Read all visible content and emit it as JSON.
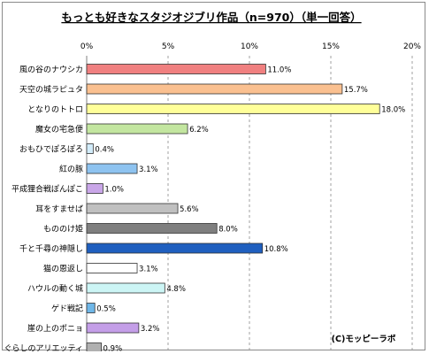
{
  "chart_data": {
    "type": "bar",
    "orientation": "horizontal",
    "title": "もっとも好きなスタジオジブリ作品（n=970）（単一回答）",
    "credit": "(C)モッピーラボ",
    "xlim": [
      0,
      20
    ],
    "x_ticks": [
      0,
      5,
      10,
      15,
      20
    ],
    "x_tick_labels": [
      "0%",
      "5%",
      "10%",
      "15%",
      "20%"
    ],
    "grid": "vertical dashed",
    "categories": [
      "風の谷のナウシカ",
      "天空の城ラピュタ",
      "となりのトトロ",
      "魔女の宅急便",
      "おもひでぽろぽろ",
      "紅の豚",
      "平成狸合戦ぽんぽこ",
      "耳をすませば",
      "もののけ姫",
      "千と千尋の神隠し",
      "猫の恩返し",
      "ハウルの動く城",
      "ゲド戦記",
      "崖の上のポニョ",
      "借りぐらしのアリエッティ"
    ],
    "values": [
      11.0,
      15.7,
      18.0,
      6.2,
      0.4,
      3.1,
      1.0,
      5.6,
      8.0,
      10.8,
      3.1,
      4.8,
      0.5,
      3.2,
      0.9
    ],
    "value_labels": [
      "11.0%",
      "15.7%",
      "18.0%",
      "6.2%",
      "0.4%",
      "3.1%",
      "1.0%",
      "5.6%",
      "8.0%",
      "10.8%",
      "3.1%",
      "4.8%",
      "0.5%",
      "3.2%",
      "0.9%"
    ],
    "colors": [
      "#f08080",
      "#fac090",
      "#ffff99",
      "#c3e6a0",
      "#d2ecfa",
      "#8ec3f0",
      "#c9a6e8",
      "#c0c0c0",
      "#7f7f7f",
      "#1f5fbf",
      "#ffffff",
      "#ccf5f5",
      "#6fb7e8",
      "#c49ee8",
      "#b0b0b0"
    ]
  }
}
